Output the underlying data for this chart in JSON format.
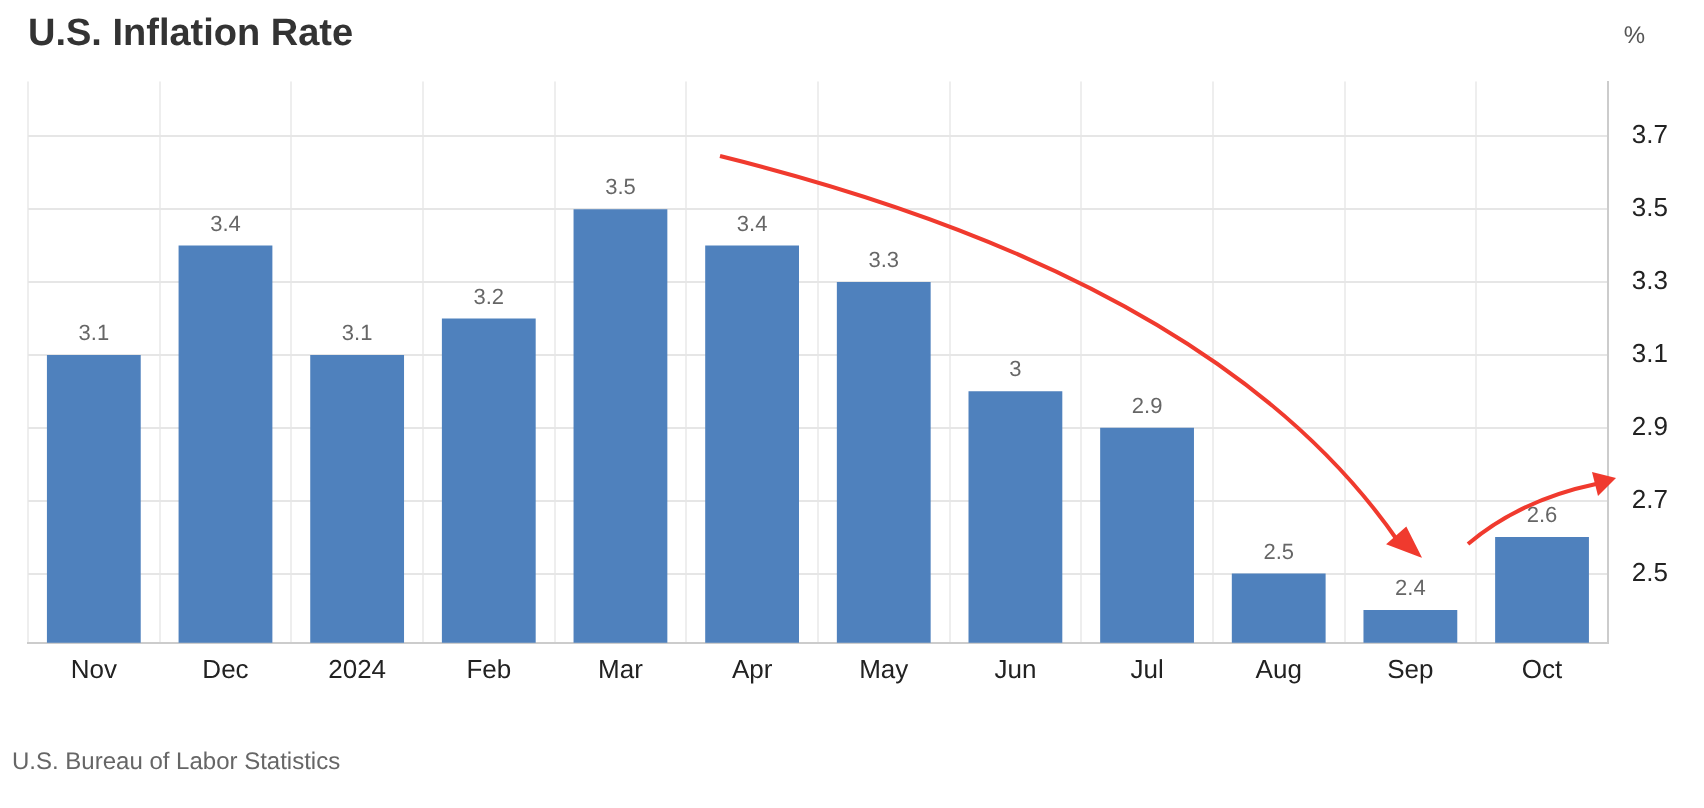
{
  "chart_data": {
    "type": "bar",
    "title": "U.S. Inflation Rate",
    "ylabel": "%",
    "categories": [
      "Nov",
      "Dec",
      "2024",
      "Feb",
      "Mar",
      "Apr",
      "May",
      "Jun",
      "Jul",
      "Aug",
      "Sep",
      "Oct"
    ],
    "values": [
      3.1,
      3.4,
      3.1,
      3.2,
      3.5,
      3.4,
      3.3,
      3,
      2.9,
      2.5,
      2.4,
      2.6
    ],
    "color": "#4f81bd",
    "ylim": [
      2.31,
      3.85
    ],
    "yticks": [
      2.5,
      2.7,
      2.9,
      3.1,
      3.3,
      3.5,
      3.7
    ],
    "grid": true,
    "data_labels": true,
    "legend": false,
    "annotations": [
      "U.S. Bureau of Labor Statistics"
    ]
  }
}
